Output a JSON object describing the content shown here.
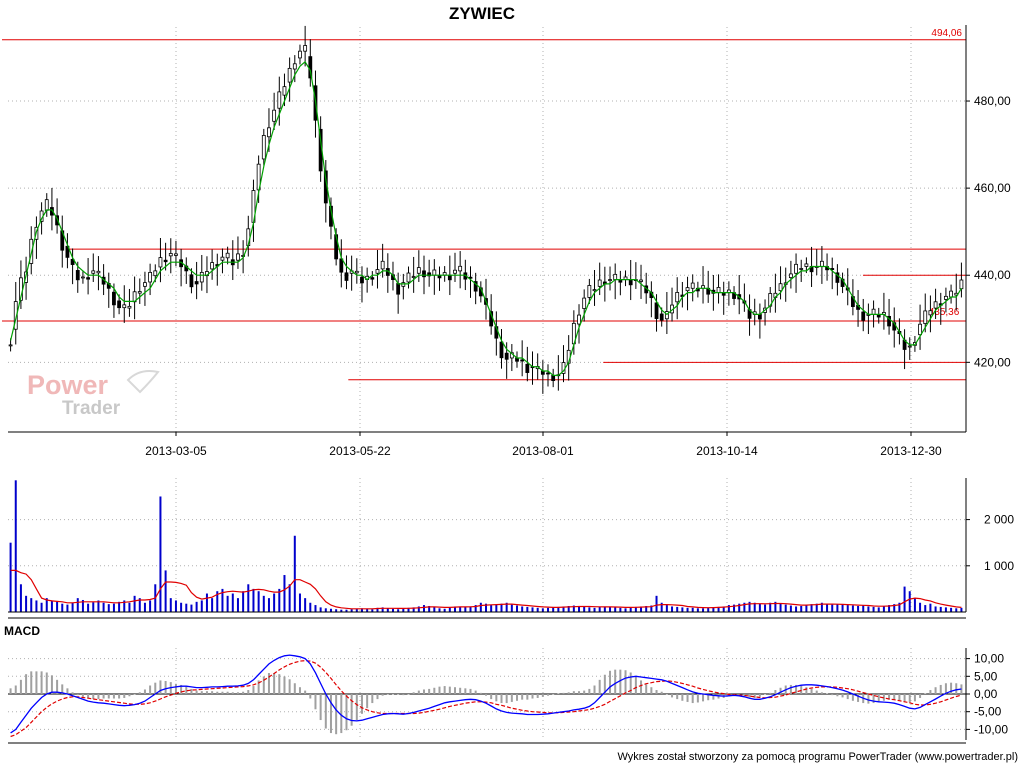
{
  "chart_data": [
    {
      "type": "candlestick",
      "title": "ZYWIEC",
      "x_tick_labels": [
        "2013-03-05",
        "2013-05-22",
        "2013-08-01",
        "2013-10-14",
        "2013-12-30"
      ],
      "y_tick_labels": [
        "420,00",
        "440,00",
        "460,00",
        "480,00"
      ],
      "y_ticks": [
        420,
        440,
        460,
        480
      ],
      "ylim": [
        404,
        497
      ],
      "grid": true,
      "moving_average_color": "#00a000",
      "candle_color": "#000000",
      "price_series": [
        424,
        432,
        437,
        440,
        446,
        451,
        454,
        456,
        455,
        452,
        448,
        445,
        442,
        440,
        439,
        440,
        441,
        440,
        439,
        437,
        435,
        433,
        432,
        433,
        435,
        437,
        438,
        439,
        441,
        443,
        444,
        445,
        444,
        443,
        441,
        439,
        438,
        439,
        441,
        442,
        443,
        444,
        444,
        443,
        444,
        445,
        449,
        456,
        464,
        470,
        474,
        477,
        480,
        483,
        486,
        489,
        491,
        492,
        488,
        478,
        468,
        459,
        452,
        446,
        441,
        440,
        441,
        440,
        439,
        439,
        440,
        441,
        442,
        441,
        439,
        437,
        438,
        439,
        440,
        441,
        441,
        440,
        440,
        440,
        440,
        440,
        441,
        441,
        440,
        439,
        438,
        436,
        433,
        430,
        426,
        423,
        421,
        421,
        421,
        420,
        419,
        419,
        418,
        418,
        417,
        417,
        417,
        418,
        422,
        427,
        431,
        434,
        436,
        437,
        438,
        439,
        439,
        439,
        439,
        439,
        439,
        439,
        438,
        437,
        435,
        432,
        430,
        430,
        433,
        435,
        436,
        437,
        437,
        437,
        437,
        437,
        436,
        436,
        436,
        436,
        436,
        435,
        433,
        431,
        431,
        431,
        432,
        434,
        436,
        437,
        439,
        440,
        441,
        442,
        442,
        442,
        442,
        442,
        442,
        441,
        440,
        438,
        436,
        434,
        432,
        431,
        431,
        431,
        431,
        431,
        430,
        428,
        426,
        424,
        423,
        425,
        428,
        430,
        432,
        433,
        434,
        435,
        435,
        436,
        438
      ],
      "ma_series": [
        425,
        430,
        435,
        440,
        445,
        450,
        453,
        455,
        455,
        453,
        450,
        447,
        444,
        442,
        441,
        440,
        440,
        440,
        439,
        438,
        437,
        435,
        434,
        434,
        434,
        435,
        436,
        437,
        439,
        441,
        442,
        443,
        443,
        443,
        442,
        441,
        440,
        440,
        440,
        441,
        442,
        443,
        443,
        443,
        443,
        444,
        447,
        452,
        459,
        465,
        470,
        474,
        477,
        480,
        483,
        486,
        488,
        489,
        487,
        480,
        471,
        462,
        455,
        449,
        444,
        442,
        441,
        440,
        440,
        439,
        440,
        440,
        441,
        441,
        440,
        438,
        438,
        438,
        439,
        440,
        440,
        440,
        440,
        440,
        440,
        440,
        440,
        440,
        440,
        439,
        438,
        437,
        434,
        431,
        428,
        425,
        423,
        422,
        421,
        421,
        420,
        419,
        419,
        418,
        418,
        417,
        417,
        418,
        420,
        424,
        428,
        431,
        434,
        436,
        437,
        438,
        438,
        439,
        439,
        439,
        439,
        439,
        438,
        437,
        436,
        434,
        432,
        431,
        432,
        433,
        435,
        436,
        436,
        437,
        437,
        437,
        436,
        436,
        436,
        436,
        436,
        435,
        434,
        432,
        431,
        431,
        432,
        433,
        435,
        436,
        438,
        439,
        440,
        441,
        441,
        442,
        442,
        442,
        442,
        441,
        440,
        439,
        437,
        435,
        433,
        432,
        431,
        431,
        431,
        431,
        430,
        429,
        427,
        425,
        424,
        424,
        426,
        428,
        430,
        432,
        433,
        434,
        435,
        435,
        437
      ],
      "horizontal_lines": [
        {
          "value": 494.06,
          "label": "494,06",
          "color": "#e00000",
          "from": 0.0,
          "to": 1.0
        },
        {
          "value": 446,
          "label": "",
          "color": "#e00000",
          "from": 0.07,
          "to": 1.0
        },
        {
          "value": 440,
          "label": "",
          "color": "#e00000",
          "from": 0.895,
          "to": 1.0
        },
        {
          "value": 429.5,
          "label": "",
          "color": "#e00000",
          "from": 0.0,
          "to": 1.0
        },
        {
          "value": 420,
          "label": "",
          "color": "#e00000",
          "from": 0.625,
          "to": 1.0
        },
        {
          "value": 416,
          "label": "",
          "color": "#e00000",
          "from": 0.36,
          "to": 1.0
        }
      ],
      "inline_label": "435,36",
      "watermark": {
        "line1": "Power",
        "line2": "Trader"
      }
    },
    {
      "type": "bar",
      "title": "",
      "y_tick_labels": [
        "1 000",
        "2 000"
      ],
      "y_ticks": [
        1000,
        2000
      ],
      "ylim": [
        0,
        2900
      ],
      "bar_color": "#0000cc",
      "ma_color": "#e00000",
      "volumes": [
        1500,
        2850,
        600,
        350,
        300,
        250,
        200,
        300,
        250,
        220,
        180,
        160,
        200,
        300,
        260,
        180,
        210,
        250,
        200,
        170,
        180,
        220,
        250,
        200,
        350,
        300,
        200,
        250,
        600,
        2500,
        900,
        300,
        250,
        200,
        180,
        160,
        220,
        250,
        400,
        300,
        450,
        500,
        350,
        400,
        300,
        450,
        600,
        500,
        450,
        350,
        300,
        400,
        500,
        800,
        600,
        1650,
        400,
        300,
        200,
        150,
        100,
        80,
        70,
        60,
        50,
        50,
        60,
        70,
        80,
        70,
        60,
        90,
        100,
        80,
        70,
        60,
        80,
        90,
        100,
        120,
        150,
        130,
        100,
        80,
        70,
        90,
        120,
        100,
        110,
        120,
        150,
        200,
        180,
        150,
        160,
        180,
        200,
        160,
        140,
        120,
        110,
        100,
        90,
        80,
        90,
        100,
        110,
        120,
        130,
        140,
        120,
        110,
        100,
        90,
        110,
        120,
        110,
        100,
        90,
        80,
        90,
        110,
        120,
        130,
        140,
        350,
        200,
        150,
        120,
        110,
        100,
        90,
        90,
        80,
        80,
        90,
        100,
        110,
        120,
        150,
        160,
        180,
        200,
        220,
        200,
        180,
        160,
        200,
        220,
        180,
        160,
        140,
        120,
        130,
        150,
        170,
        180,
        200,
        180,
        160,
        170,
        160,
        150,
        140,
        130,
        140,
        120,
        110,
        100,
        130,
        150,
        170,
        200,
        550,
        450,
        300,
        200,
        150,
        180,
        120,
        110,
        100,
        90,
        80,
        90
      ],
      "volume_ma": [
        900,
        900,
        850,
        820,
        700,
        500,
        300,
        260,
        240,
        230,
        220,
        200,
        200,
        210,
        220,
        220,
        220,
        220,
        220,
        210,
        200,
        200,
        210,
        220,
        240,
        260,
        260,
        270,
        300,
        500,
        650,
        650,
        640,
        620,
        580,
        420,
        320,
        280,
        300,
        320,
        380,
        420,
        440,
        450,
        440,
        430,
        450,
        480,
        490,
        480,
        450,
        430,
        430,
        480,
        560,
        700,
        700,
        650,
        600,
        500,
        350,
        220,
        150,
        110,
        90,
        80,
        70,
        70,
        70,
        70,
        70,
        75,
        80,
        80,
        80,
        78,
        78,
        80,
        85,
        90,
        100,
        110,
        110,
        105,
        100,
        100,
        105,
        110,
        110,
        112,
        120,
        140,
        150,
        155,
        160,
        165,
        170,
        170,
        160,
        150,
        140,
        130,
        120,
        110,
        105,
        100,
        100,
        105,
        110,
        115,
        120,
        120,
        118,
        115,
        112,
        110,
        110,
        108,
        105,
        100,
        100,
        102,
        105,
        110,
        115,
        150,
        160,
        160,
        155,
        150,
        140,
        120,
        110,
        100,
        95,
        92,
        95,
        100,
        105,
        115,
        125,
        140,
        160,
        175,
        180,
        180,
        178,
        180,
        185,
        185,
        180,
        170,
        160,
        150,
        150,
        155,
        160,
        170,
        172,
        170,
        168,
        165,
        160,
        155,
        150,
        145,
        140,
        130,
        125,
        125,
        130,
        140,
        155,
        220,
        280,
        300,
        290,
        260,
        240,
        200,
        170,
        150,
        130,
        110,
        100
      ]
    },
    {
      "type": "line",
      "title": "MACD",
      "y_tick_labels": [
        "-10,00",
        "-5,00",
        "0,00",
        "5,00",
        "10,00"
      ],
      "y_ticks": [
        -10,
        -5,
        0,
        5,
        10
      ],
      "ylim": [
        -13,
        13
      ],
      "macd_color": "#0000ff",
      "signal_color": "#e00000",
      "histogram_color": "#a0a0a0",
      "macd": [
        -11,
        -10,
        -8,
        -6,
        -4,
        -2.5,
        -1,
        0,
        0.5,
        0.5,
        0.3,
        0,
        -0.5,
        -1,
        -1.5,
        -2,
        -2.3,
        -2.5,
        -2.6,
        -2.8,
        -3,
        -3.2,
        -3.3,
        -3.2,
        -3,
        -2.6,
        -2,
        -1,
        0,
        1,
        1.5,
        1.8,
        2,
        2.2,
        2.2,
        2,
        1.8,
        1.8,
        1.9,
        2,
        2,
        2.1,
        2.2,
        2.2,
        2.3,
        2.5,
        3,
        4,
        5.5,
        7,
        8.5,
        9.5,
        10.3,
        10.8,
        11,
        10.8,
        10.5,
        10,
        8.5,
        6,
        3,
        0,
        -2.5,
        -4.5,
        -6,
        -7,
        -7.5,
        -7.6,
        -7.4,
        -7,
        -6.6,
        -6.2,
        -5.8,
        -5.6,
        -5.5,
        -5.6,
        -5.7,
        -5.5,
        -5.2,
        -4.8,
        -4.4,
        -4,
        -3.5,
        -3,
        -2.5,
        -2.2,
        -2,
        -1.8,
        -1.6,
        -1.5,
        -1.6,
        -2,
        -2.6,
        -3.4,
        -4.2,
        -4.8,
        -5.2,
        -5.4,
        -5.5,
        -5.6,
        -5.8,
        -5.8,
        -5.8,
        -5.7,
        -5.6,
        -5.4,
        -5.2,
        -5,
        -4.8,
        -4.5,
        -4.3,
        -4,
        -3.5,
        -2.5,
        -1,
        0.5,
        2,
        3,
        3.8,
        4.5,
        4.8,
        5,
        4.8,
        4.6,
        4.4,
        4.2,
        4,
        3.6,
        3,
        2.4,
        1.8,
        1.2,
        0.6,
        0.2,
        0,
        -0.2,
        -0.4,
        -0.5,
        -0.6,
        -0.5,
        -0.4,
        -0.5,
        -0.8,
        -1.2,
        -1.5,
        -1.5,
        -1.2,
        -0.8,
        -0.2,
        0.5,
        1.2,
        1.8,
        2.2,
        2.5,
        2.6,
        2.6,
        2.5,
        2.3,
        2.1,
        1.8,
        1.5,
        1.1,
        0.6,
        0,
        -0.6,
        -1.2,
        -1.7,
        -2,
        -2.2,
        -2.3,
        -2.4,
        -2.6,
        -3,
        -3.5,
        -4,
        -4.2,
        -3.8,
        -3,
        -2.2,
        -1.4,
        -0.6,
        0.2,
        0.8,
        1.2,
        1.4
      ],
      "signal": [
        -12,
        -11.5,
        -10.5,
        -9.5,
        -8,
        -6.5,
        -5,
        -3.8,
        -2.8,
        -2,
        -1.4,
        -1,
        -0.8,
        -0.8,
        -1,
        -1.2,
        -1.4,
        -1.6,
        -1.8,
        -2,
        -2.2,
        -2.4,
        -2.6,
        -2.8,
        -2.9,
        -2.9,
        -2.8,
        -2.5,
        -2,
        -1.4,
        -0.8,
        -0.3,
        0.2,
        0.6,
        0.9,
        1.1,
        1.2,
        1.3,
        1.4,
        1.5,
        1.6,
        1.7,
        1.8,
        1.9,
        2,
        2.1,
        2.3,
        2.6,
        3.1,
        3.9,
        4.8,
        5.8,
        6.8,
        7.7,
        8.4,
        8.9,
        9.3,
        9.4,
        9.3,
        8.7,
        7.6,
        6.1,
        4.4,
        2.6,
        0.9,
        -0.6,
        -1.9,
        -3,
        -3.9,
        -4.5,
        -5,
        -5.3,
        -5.5,
        -5.5,
        -5.5,
        -5.5,
        -5.5,
        -5.5,
        -5.5,
        -5.4,
        -5.2,
        -4.9,
        -4.6,
        -4.3,
        -3.9,
        -3.5,
        -3.2,
        -2.9,
        -2.6,
        -2.4,
        -2.2,
        -2.2,
        -2.3,
        -2.5,
        -2.9,
        -3.2,
        -3.6,
        -4,
        -4.3,
        -4.6,
        -4.8,
        -5,
        -5.1,
        -5.2,
        -5.3,
        -5.3,
        -5.3,
        -5.2,
        -5.1,
        -5,
        -4.8,
        -4.6,
        -4.4,
        -4,
        -3.5,
        -2.9,
        -2.1,
        -1.3,
        -0.5,
        0.3,
        1,
        1.8,
        2.4,
        2.9,
        3.2,
        3.5,
        3.6,
        3.7,
        3.6,
        3.3,
        3,
        2.6,
        2.2,
        1.7,
        1.3,
        0.9,
        0.6,
        0.3,
        0.1,
        -0.1,
        -0.2,
        -0.3,
        -0.4,
        -0.6,
        -0.8,
        -1,
        -1.1,
        -1,
        -0.9,
        -0.6,
        -0.3,
        0.2,
        0.6,
        1,
        1.4,
        1.7,
        1.9,
        2,
        2,
        2,
        1.9,
        1.7,
        1.5,
        1.2,
        0.8,
        0.4,
        0,
        -0.4,
        -0.8,
        -1.1,
        -1.4,
        -1.6,
        -1.9,
        -2.2,
        -2.5,
        -2.9,
        -3.1,
        -3.1,
        -2.9,
        -2.6,
        -2.2,
        -1.7,
        -1.2,
        -0.7,
        -0.3
      ]
    }
  ],
  "footer": "Wykres został stworzony za pomocą programu PowerTrader (www.powertrader.pl)"
}
